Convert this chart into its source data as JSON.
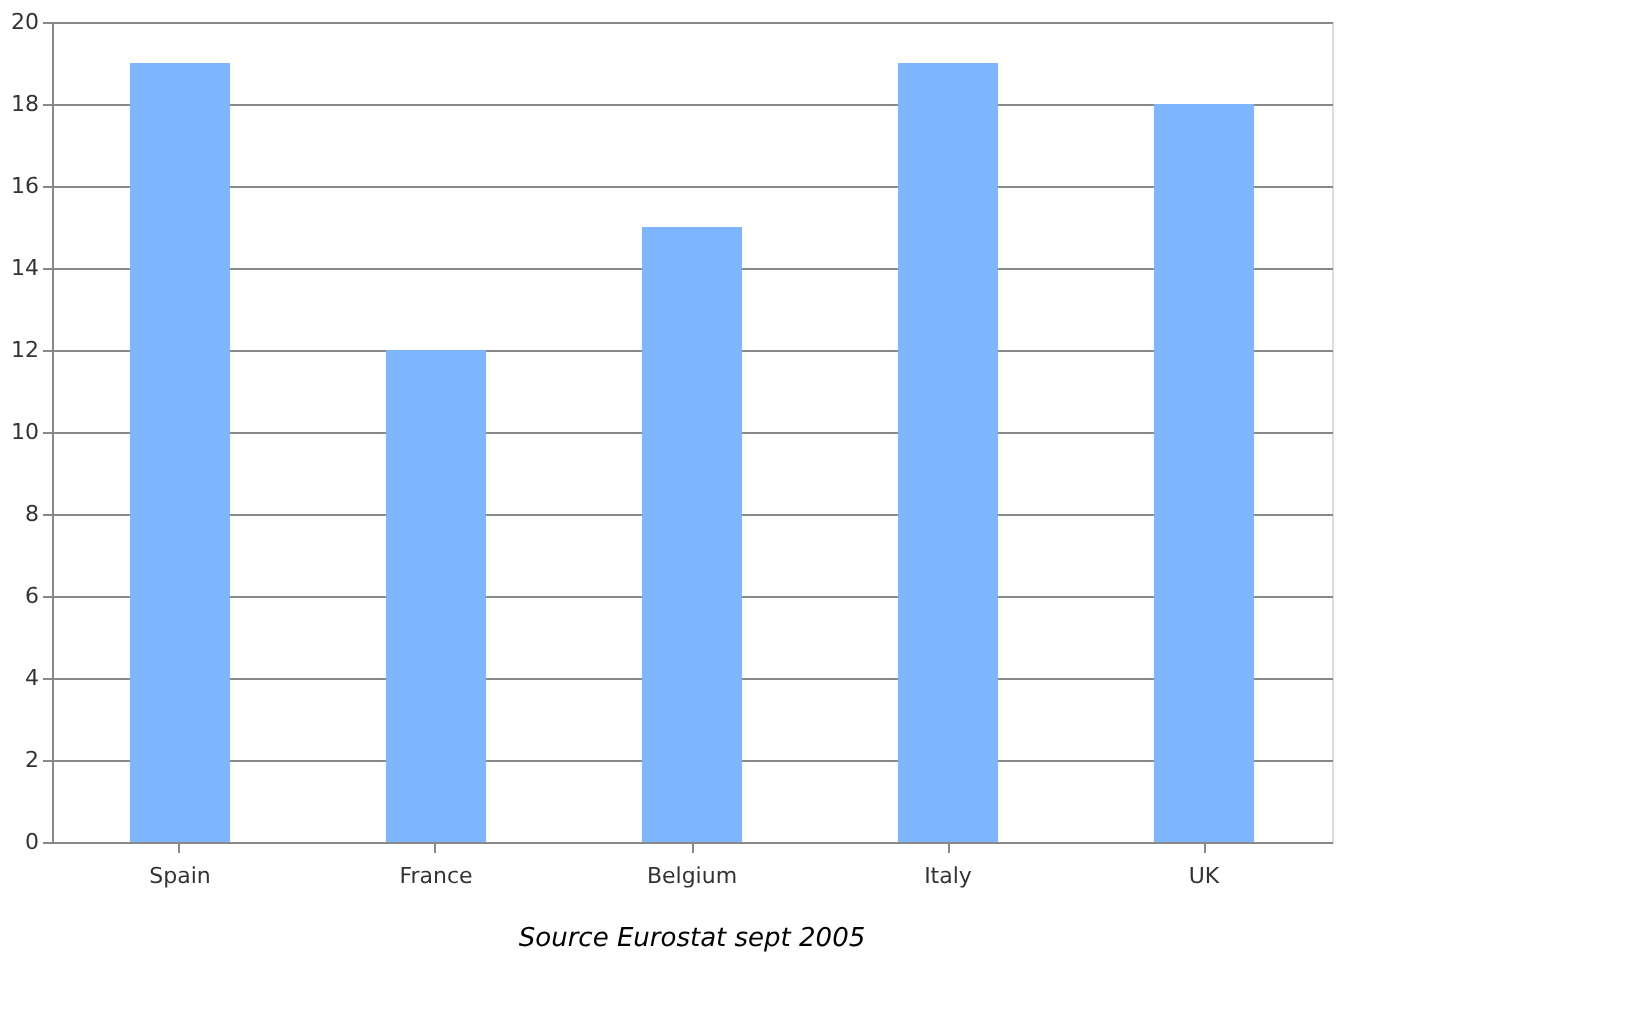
{
  "chart_data": {
    "type": "bar",
    "categories": [
      "Spain",
      "France",
      "Belgium",
      "Italy",
      "UK"
    ],
    "values": [
      19,
      12,
      15,
      19,
      18
    ],
    "color": "#7eb6fd",
    "ylim": [
      0,
      20
    ],
    "yticks": [
      0,
      2,
      4,
      6,
      8,
      10,
      12,
      14,
      16,
      18,
      20
    ],
    "grid": "y",
    "annotations": [
      "Source Eurostat sept 2005"
    ]
  }
}
